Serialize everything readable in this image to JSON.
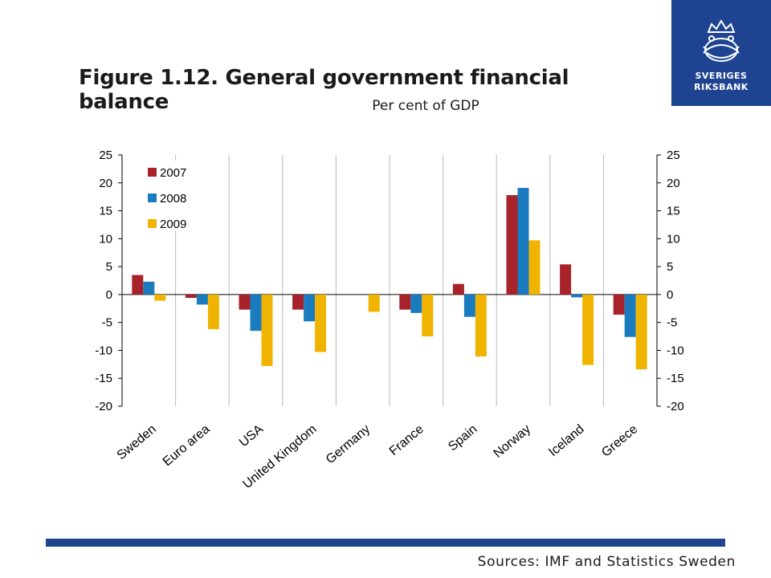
{
  "logo": {
    "line1": "SVERIGES",
    "line2": "RIKSBANK"
  },
  "title": "Figure 1.12. General government financial balance",
  "subtitle": "Per cent of GDP",
  "sources": "Sources: IMF and Statistics Sweden",
  "chart_data": {
    "type": "bar",
    "categories": [
      "Sweden",
      "Euro area",
      "USA",
      "United Kingdom",
      "Germany",
      "France",
      "Spain",
      "Norway",
      "Iceland",
      "Greece"
    ],
    "series": [
      {
        "name": "2007",
        "color": "#a8222a",
        "values": [
          3.5,
          -0.6,
          -2.7,
          -2.7,
          0.0,
          -2.7,
          1.9,
          17.8,
          5.4,
          -3.6
        ]
      },
      {
        "name": "2008",
        "color": "#1a7cbf",
        "values": [
          2.3,
          -1.8,
          -6.5,
          -4.8,
          0.0,
          -3.3,
          -4.0,
          19.1,
          -0.5,
          -7.6
        ]
      },
      {
        "name": "2009",
        "color": "#f0b400",
        "values": [
          -1.1,
          -6.2,
          -12.8,
          -10.3,
          -3.1,
          -7.5,
          -11.1,
          9.7,
          -12.6,
          -13.4
        ]
      }
    ],
    "ylim": [
      -20,
      25
    ],
    "yticks": [
      "25",
      "20",
      "15",
      "10",
      "5",
      "0",
      "-5",
      "-10",
      "-15",
      "-20"
    ],
    "ytick_values": [
      25,
      20,
      15,
      10,
      5,
      0,
      -5,
      -10,
      -15,
      -20
    ],
    "legend": "top-left",
    "grid": "vertical"
  }
}
